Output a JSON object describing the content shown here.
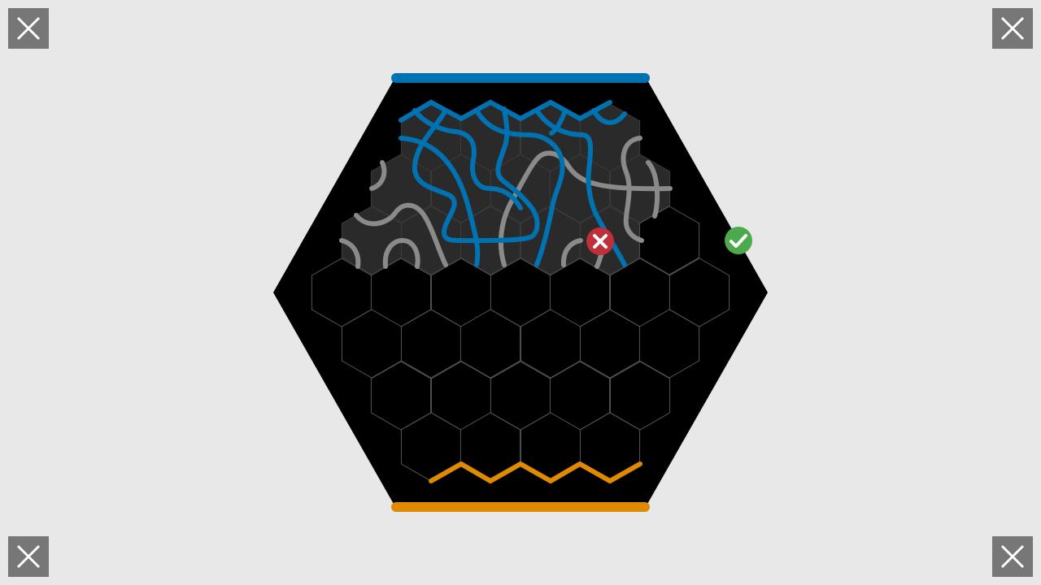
{
  "game": {
    "name": "hex-tile-path-puzzle",
    "players": [
      {
        "name": "top-player",
        "color": "#0072b2"
      },
      {
        "name": "bottom-player",
        "color": "#e08a00"
      }
    ],
    "colors": {
      "background": "#e8e8e8",
      "board": "#000000",
      "placed_tile": "#2a2a2a",
      "neutral_path": "#8a8a8a",
      "grid_line": "#555555",
      "confirm": "#4caa4c",
      "reject": "#c0303a",
      "button": "#777777"
    },
    "icons": {
      "corner_buttons": "close-icon",
      "confirm": "check-icon",
      "reject": "x-icon"
    }
  }
}
